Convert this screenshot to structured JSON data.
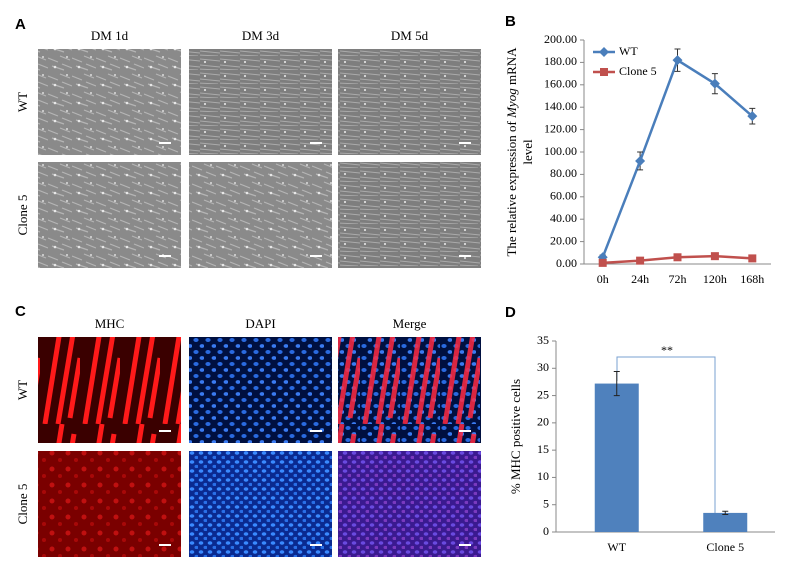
{
  "panels": {
    "a": "A",
    "b": "B",
    "c": "C",
    "d": "D"
  },
  "panel_a": {
    "columns": [
      "DM 1d",
      "DM 3d",
      "DM 5d"
    ],
    "rows": [
      "WT",
      "Clone 5"
    ]
  },
  "panel_c": {
    "columns": [
      "MHC",
      "DAPI",
      "Merge"
    ],
    "rows": [
      "WT",
      "Clone 5"
    ]
  },
  "chart_data": [
    {
      "type": "line",
      "ylabel_parts": [
        "The relative expression of ",
        "Myog",
        " mRNA"
      ],
      "ylabel_line2": "level",
      "categories": [
        "0h",
        "24h",
        "72h",
        "120h",
        "168h"
      ],
      "series": [
        {
          "name": "WT",
          "color": "#4a7ebb",
          "marker": "diamond",
          "values": [
            6,
            92,
            182,
            161,
            132
          ],
          "errors": [
            2,
            8,
            10,
            9,
            7
          ]
        },
        {
          "name": "Clone 5",
          "color": "#c0504d",
          "marker": "square",
          "values": [
            1,
            3,
            6,
            7,
            5
          ],
          "errors": [
            0.5,
            0.5,
            1,
            1,
            0.5
          ]
        }
      ],
      "ylim": [
        0,
        200
      ],
      "yticks": [
        {
          "value": 0,
          "label": "0.00"
        },
        {
          "value": 20,
          "label": "20.00"
        },
        {
          "value": 40,
          "label": "40.00"
        },
        {
          "value": 60,
          "label": "60.00"
        },
        {
          "value": 80,
          "label": "80.00"
        },
        {
          "value": 100,
          "label": "100.00"
        },
        {
          "value": 120,
          "label": "120.00"
        },
        {
          "value": 140,
          "label": "140.00"
        },
        {
          "value": 160,
          "label": "160.00"
        },
        {
          "value": 180,
          "label": "180.00"
        },
        {
          "value": 200,
          "label": "200.00"
        }
      ],
      "legend": "top-left"
    },
    {
      "type": "bar",
      "ylabel": "% MHC positive cells",
      "categories": [
        "WT",
        "Clone 5"
      ],
      "values": [
        27.2,
        3.5
      ],
      "errors": [
        2.2,
        0.3
      ],
      "color": "#4f81bd",
      "ylim": [
        0,
        35
      ],
      "yticks": [
        0,
        5,
        10,
        15,
        20,
        25,
        30,
        35
      ],
      "annotation": "**"
    }
  ]
}
